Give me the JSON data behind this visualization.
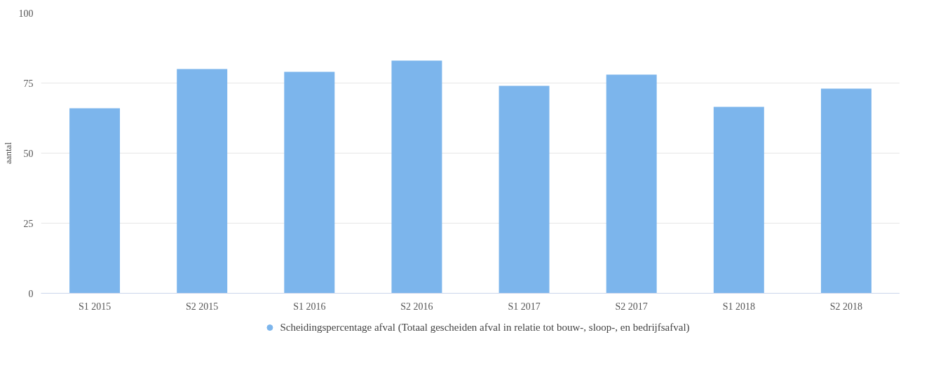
{
  "chart_data": {
    "type": "bar",
    "ylabel": "aantal",
    "categories": [
      "S1 2015",
      "S2 2015",
      "S1 2016",
      "S2 2016",
      "S1 2017",
      "S2 2017",
      "S1 2018",
      "S2 2018"
    ],
    "series": [
      {
        "name": "Scheidingspercentage afval (Totaal gescheiden afval in relatie tot bouw-, sloop-, en bedrijfsafval)",
        "color": "#7cb5ec",
        "values": [
          66,
          80,
          79,
          83,
          74,
          78,
          66.5,
          73
        ]
      }
    ],
    "ylim": [
      0,
      100
    ],
    "yticks": [
      0,
      25,
      50,
      75,
      100
    ],
    "grid": "y",
    "legend": "bottom"
  }
}
